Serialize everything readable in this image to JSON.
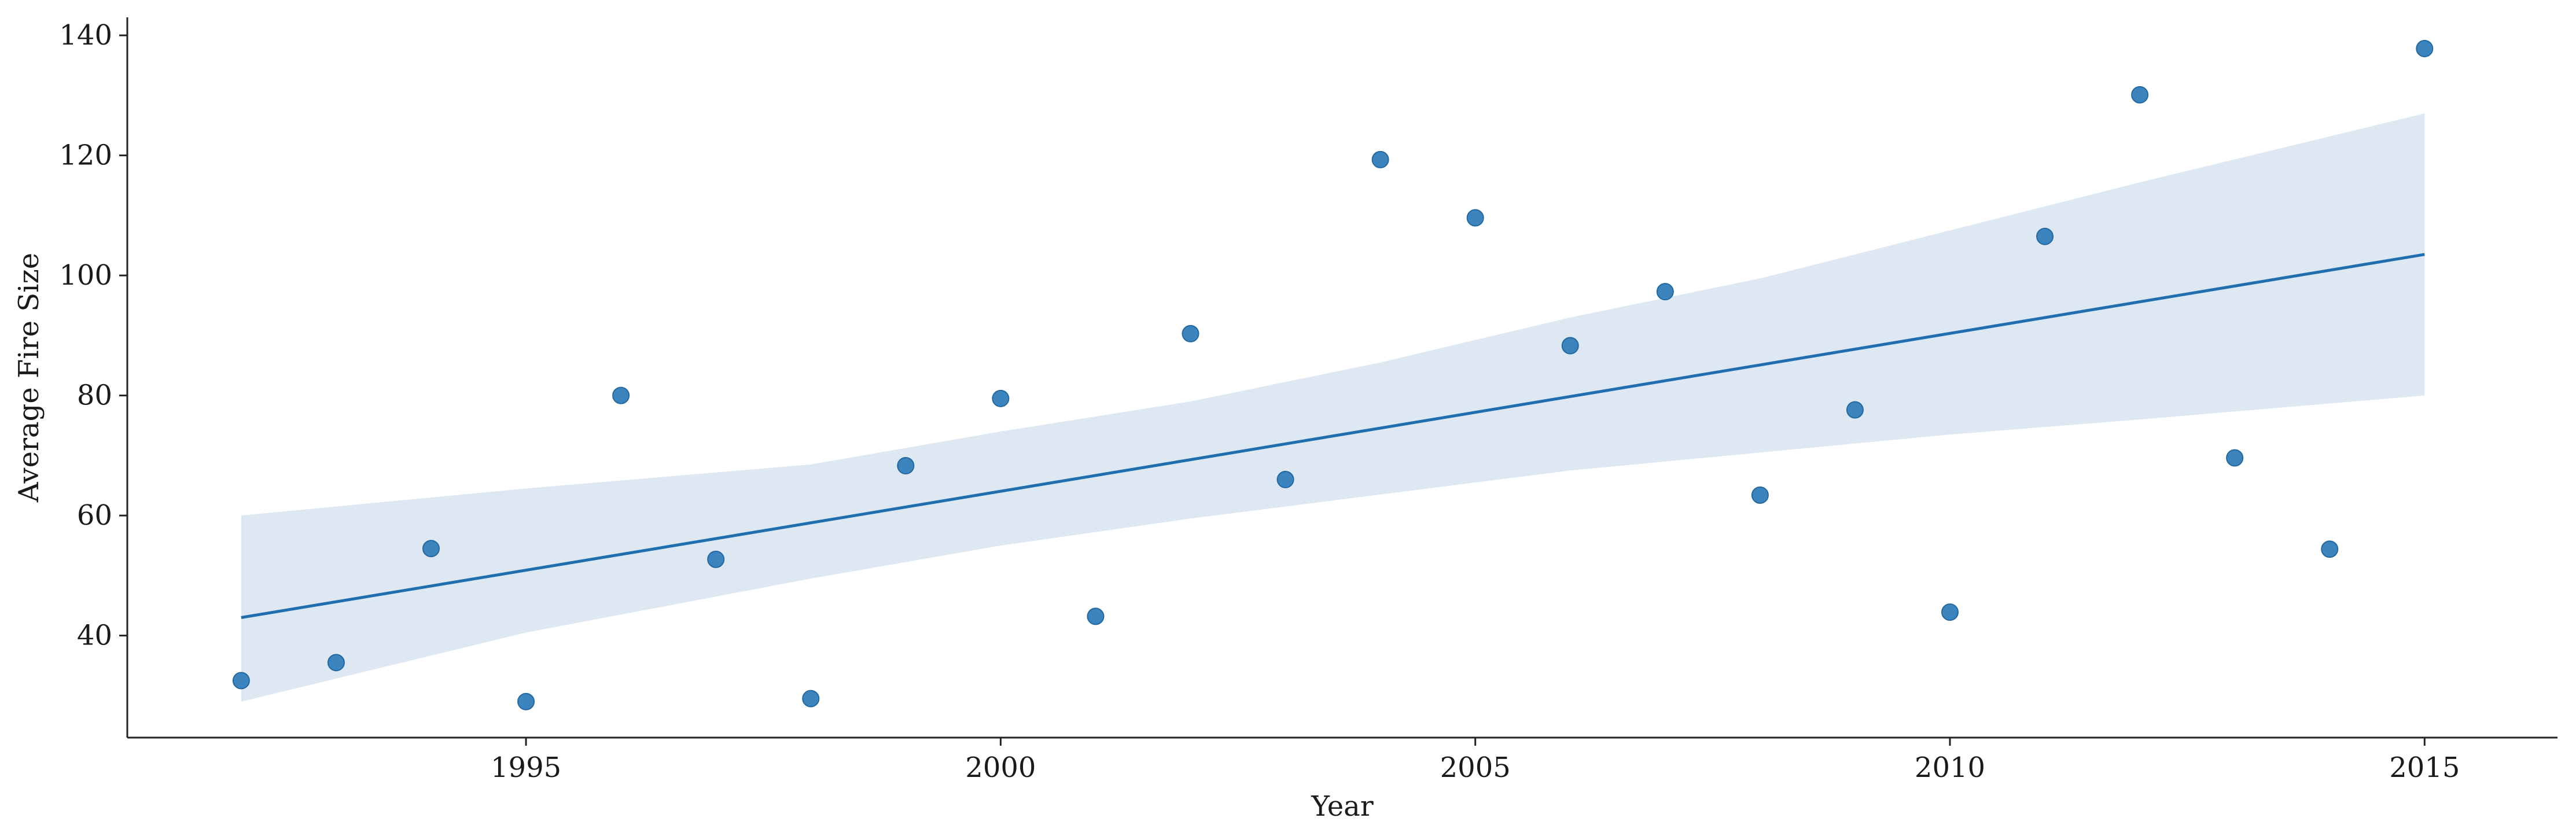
{
  "chart_data": {
    "type": "scatter",
    "title": "",
    "xlabel": "Year",
    "ylabel": "Average Fire Size",
    "xlim": [
      1990.8,
      2016.4
    ],
    "ylim": [
      23,
      143
    ],
    "x_ticks": [
      1995,
      2000,
      2005,
      2010,
      2015
    ],
    "y_ticks": [
      40,
      60,
      80,
      100,
      120,
      140
    ],
    "x_tick_labels": [
      "1995",
      "2000",
      "2005",
      "2010",
      "2015"
    ],
    "y_tick_labels": [
      "40",
      "60",
      "80",
      "100",
      "120",
      "140"
    ],
    "grid": false,
    "color": "#1f77b4",
    "points": [
      {
        "x": 1992,
        "y": 32.5
      },
      {
        "x": 1993,
        "y": 35.5
      },
      {
        "x": 1994,
        "y": 54.5
      },
      {
        "x": 1995,
        "y": 29
      },
      {
        "x": 1996,
        "y": 80
      },
      {
        "x": 1997,
        "y": 52.7
      },
      {
        "x": 1998,
        "y": 29.5
      },
      {
        "x": 1999,
        "y": 68.3
      },
      {
        "x": 2000,
        "y": 79.5
      },
      {
        "x": 2001,
        "y": 43.2
      },
      {
        "x": 2002,
        "y": 90.3
      },
      {
        "x": 2003,
        "y": 66
      },
      {
        "x": 2004,
        "y": 119.3
      },
      {
        "x": 2005,
        "y": 109.6
      },
      {
        "x": 2006,
        "y": 88.3
      },
      {
        "x": 2007,
        "y": 97.3
      },
      {
        "x": 2008,
        "y": 63.4
      },
      {
        "x": 2009,
        "y": 77.6
      },
      {
        "x": 2010,
        "y": 43.9
      },
      {
        "x": 2011,
        "y": 106.5
      },
      {
        "x": 2012,
        "y": 130.1
      },
      {
        "x": 2013,
        "y": 69.6
      },
      {
        "x": 2014,
        "y": 54.4
      },
      {
        "x": 2015,
        "y": 137.8
      }
    ],
    "regression_line": {
      "x": [
        1992,
        2015
      ],
      "y": [
        43,
        103.5
      ]
    },
    "confidence_band": {
      "x": [
        1992,
        1995,
        1998,
        2000,
        2002,
        2004,
        2006,
        2008,
        2010,
        2012,
        2015
      ],
      "upper": [
        60,
        64.5,
        68.5,
        74,
        79,
        85.5,
        93,
        99.5,
        107.5,
        115.5,
        127
      ],
      "lower": [
        29,
        40.5,
        49.5,
        55,
        59.5,
        63.5,
        67.5,
        70.5,
        73.5,
        76,
        80
      ]
    }
  }
}
